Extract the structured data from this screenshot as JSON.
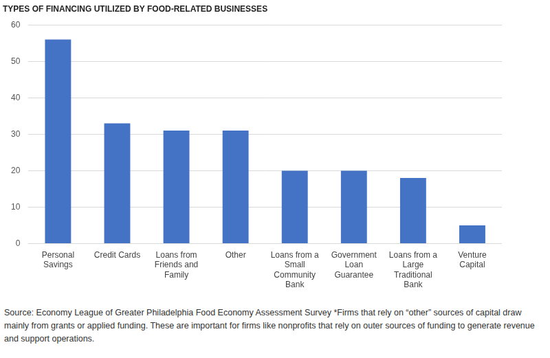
{
  "chart_data": {
    "type": "bar",
    "title": "TYPES OF FINANCING UTILIZED BY FOOD-RELATED BUSINESSES",
    "categories": [
      "Personal Savings",
      "Credit Cards",
      "Loans from Friends and Family",
      "Other",
      "Loans from a Small Community Bank",
      "Government Loan Guarantee",
      "Loans from a Large Traditional Bank",
      "Venture Capital"
    ],
    "values": [
      56,
      33,
      31,
      31,
      20,
      20,
      18,
      5
    ],
    "color": "#4472c4",
    "ylim": [
      0,
      60
    ],
    "yticks": [
      0,
      10,
      20,
      30,
      40,
      50,
      60
    ],
    "grid": true,
    "source": "Source: Economy League of Greater Philadelphia Food Economy Assessment Survey *Firms that rely on “other” sources of capital draw mainly from grants or applied funding. These are important for firms like nonprofits that rely on outer sources of funding to generate revenue and support operations."
  }
}
